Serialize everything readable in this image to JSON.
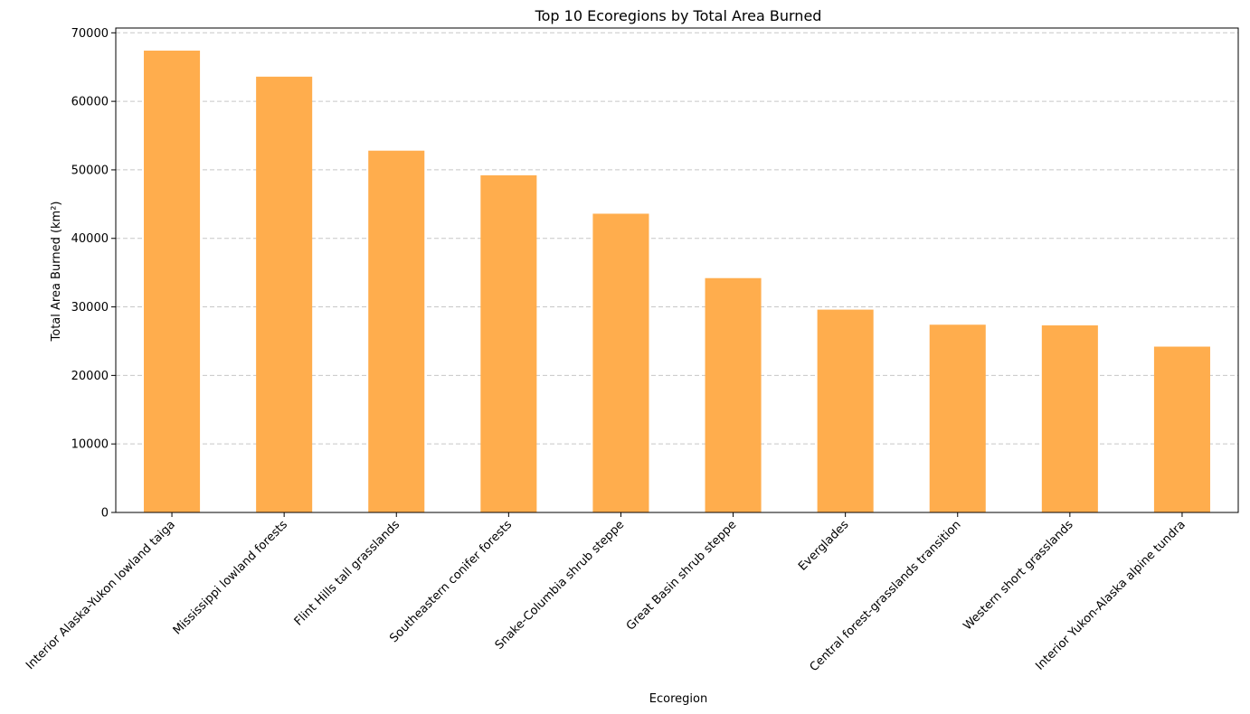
{
  "chart_data": {
    "type": "bar",
    "title": "Top 10 Ecoregions by Total Area Burned",
    "xlabel": "Ecoregion",
    "ylabel": "Total Area Burned (km²)",
    "categories": [
      "Interior Alaska-Yukon lowland taiga",
      "Mississippi lowland forests",
      "Flint Hills tall grasslands",
      "Southeastern conifer forests",
      "Snake-Columbia shrub steppe",
      "Great Basin shrub steppe",
      "Everglades",
      "Central forest-grasslands transition",
      "Western short grasslands",
      "Interior Yukon-Alaska alpine tundra"
    ],
    "values": [
      67400,
      63600,
      52800,
      49200,
      43600,
      34200,
      29600,
      27400,
      27300,
      24200
    ],
    "ylim": [
      0,
      70700
    ],
    "yticks": [
      0,
      10000,
      20000,
      30000,
      40000,
      50000,
      60000,
      70000
    ],
    "grid": "y-dashed",
    "bar_color": "#ffad4d",
    "grid_color": "#c7c7c7"
  }
}
